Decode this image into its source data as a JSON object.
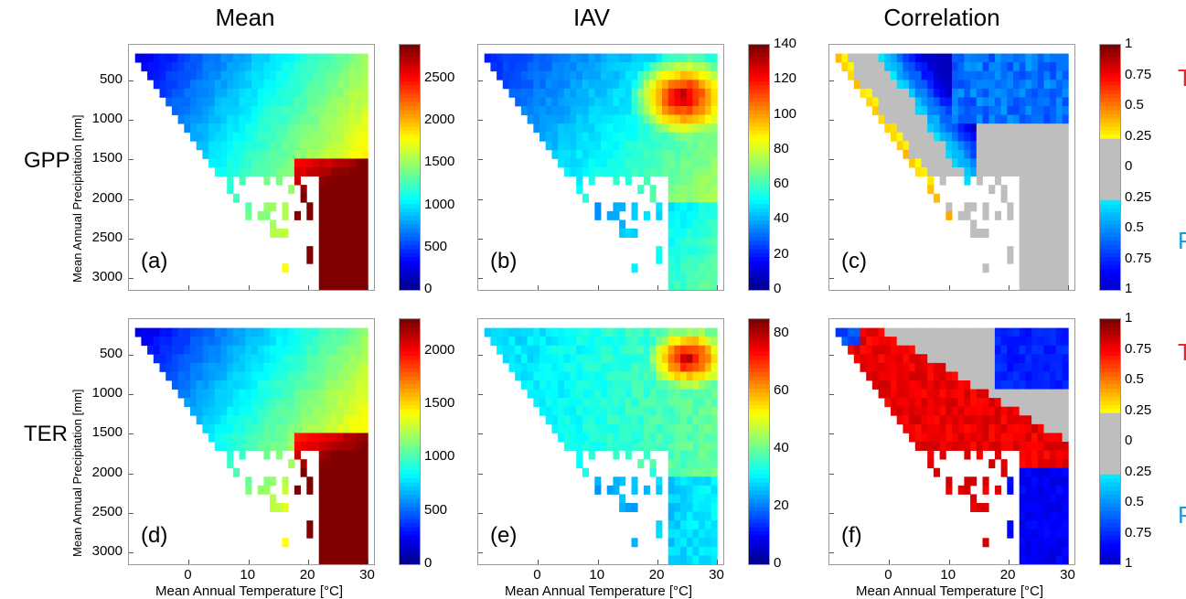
{
  "columns": [
    "Mean",
    "IAV",
    "Correlation"
  ],
  "rows": [
    "GPP",
    "TER"
  ],
  "xlabel": "Mean Annual Temperature [°C]",
  "ylabel": "Mean Annual Precipitation [mm]",
  "tp_labels": {
    "t": "T",
    "p": "P"
  },
  "colors": {
    "t_label": "#e8262a",
    "p_label": "#1a9ad8",
    "mask": "#bebebe"
  },
  "chart_data": [
    {
      "type": "heatmap",
      "panel": "(a)",
      "variable": "GPP",
      "metric": "Mean",
      "x_ticks": [
        0,
        10,
        20,
        30
      ],
      "y_ticks": [
        500,
        1000,
        1500,
        2000,
        2500,
        3000
      ],
      "xlim": [
        -10,
        31
      ],
      "ylim": [
        3150,
        50
      ],
      "colorbar": {
        "range": [
          0,
          2900
        ],
        "ticks": [
          0,
          500,
          1000,
          1500,
          2000,
          2500
        ],
        "colormap": "jet"
      },
      "pattern": "low values in cold/dry region, high values (>2500) at warm (20-28 °C) and wet (1700-3000 mm) corner"
    },
    {
      "type": "heatmap",
      "panel": "(b)",
      "variable": "GPP",
      "metric": "IAV",
      "x_ticks": [
        0,
        10,
        20,
        30
      ],
      "y_ticks": [
        500,
        1000,
        1500,
        2000,
        2500,
        3000
      ],
      "xlim": [
        -10,
        31
      ],
      "ylim": [
        3150,
        50
      ],
      "colorbar": {
        "range": [
          0,
          140
        ],
        "ticks": [
          0,
          20,
          40,
          60,
          80,
          100,
          120,
          140
        ],
        "colormap": "jet"
      },
      "pattern": "low variability in cold and very wet regions, maximum (~120-140) at 20-28 °C and 500-1000 mm"
    },
    {
      "type": "heatmap",
      "panel": "(c)",
      "variable": "GPP",
      "metric": "Correlation",
      "x_ticks": [
        0,
        10,
        20,
        30
      ],
      "y_ticks": [
        500,
        1000,
        1500,
        2000,
        2500,
        3000
      ],
      "xlim": [
        -10,
        31
      ],
      "ylim": [
        3150,
        50
      ],
      "colorbar": {
        "ticks": [
          "1",
          "0.75",
          "0.5",
          "0.25",
          "0",
          "0.25",
          "0.5",
          "0.75",
          "1"
        ],
        "upper": "T",
        "lower": "P",
        "colormap": "diverging, grey for |r| < 0.25"
      },
      "pattern": "temperature-dominated (red) along cold/dry diagonal, precipitation-dominated (blue) at warm/dry top right, grey elsewhere"
    },
    {
      "type": "heatmap",
      "panel": "(d)",
      "variable": "TER",
      "metric": "Mean",
      "x_ticks": [
        0,
        10,
        20,
        30
      ],
      "y_ticks": [
        500,
        1000,
        1500,
        2000,
        2500,
        3000
      ],
      "xlim": [
        -10,
        31
      ],
      "ylim": [
        3150,
        50
      ],
      "colorbar": {
        "range": [
          0,
          2300
        ],
        "ticks": [
          0,
          500,
          1000,
          1500,
          2000
        ],
        "colormap": "jet"
      },
      "pattern": "similar to GPP mean, max (~2000+) at warm wet corner"
    },
    {
      "type": "heatmap",
      "panel": "(e)",
      "variable": "TER",
      "metric": "IAV",
      "x_ticks": [
        0,
        10,
        20,
        30
      ],
      "y_ticks": [
        500,
        1000,
        1500,
        2000,
        2500,
        3000
      ],
      "xlim": [
        -10,
        31
      ],
      "ylim": [
        3150,
        50
      ],
      "colorbar": {
        "range": [
          0,
          85
        ],
        "ticks": [
          0,
          20,
          40,
          60,
          80
        ],
        "colormap": "jet"
      },
      "pattern": "moderate values widely, maximum (~80) at 20-28 °C and 300-800 mm"
    },
    {
      "type": "heatmap",
      "panel": "(f)",
      "variable": "TER",
      "metric": "Correlation",
      "x_ticks": [
        0,
        10,
        20,
        30
      ],
      "y_ticks": [
        500,
        1000,
        1500,
        2000,
        2500,
        3000
      ],
      "xlim": [
        -10,
        31
      ],
      "ylim": [
        3150,
        50
      ],
      "colorbar": {
        "ticks": [
          "1",
          "0.75",
          "0.5",
          "0.25",
          "0",
          "0.25",
          "0.5",
          "0.75",
          "1"
        ],
        "upper": "T",
        "lower": "P",
        "colormap": "diverging, grey for |r| < 0.25"
      },
      "pattern": "large temperature-dominated region (red) over cold to temperate, precipitation-dominated (blue) at warm dry and warm wet edge"
    }
  ]
}
